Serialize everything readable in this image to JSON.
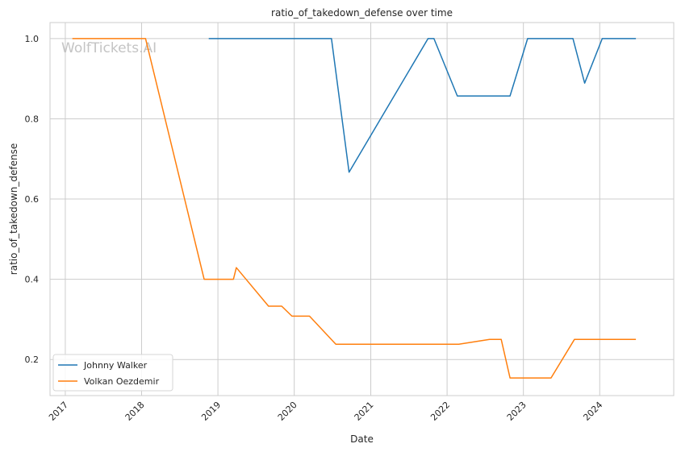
{
  "chart_data": {
    "type": "line",
    "title": "ratio_of_takedown_defense over time",
    "xlabel": "Date",
    "ylabel": "ratio_of_takedown_defense",
    "watermark": "WolfTickets.AI",
    "xlim": [
      "2016-10-20",
      "2024-12-20"
    ],
    "ylim": [
      0.11,
      1.04
    ],
    "x_ticks": [
      "2017",
      "2018",
      "2019",
      "2020",
      "2021",
      "2022",
      "2023",
      "2024"
    ],
    "y_ticks": [
      0.2,
      0.4,
      0.6,
      0.8,
      1.0
    ],
    "y_tick_labels": [
      "0.2",
      "0.4",
      "0.6",
      "0.8",
      "1.0"
    ],
    "grid": true,
    "legend_position": "lower-left",
    "series": [
      {
        "name": "Johnny Walker",
        "color": "#1f77b4",
        "points": [
          [
            "2018-11-18",
            1.0
          ],
          [
            "2020-06-27",
            1.0
          ],
          [
            "2020-09-19",
            0.667
          ],
          [
            "2021-10-02",
            1.0
          ],
          [
            "2021-10-30",
            1.0
          ],
          [
            "2022-02-19",
            0.857
          ],
          [
            "2022-10-29",
            0.857
          ],
          [
            "2023-01-21",
            1.0
          ],
          [
            "2023-08-26",
            1.0
          ],
          [
            "2023-10-21",
            0.889
          ],
          [
            "2024-01-13",
            1.0
          ],
          [
            "2024-06-22",
            1.0
          ]
        ]
      },
      {
        "name": "Volkan Oezdemir",
        "color": "#ff7f0e",
        "points": [
          [
            "2017-02-04",
            1.0
          ],
          [
            "2018-01-20",
            1.0
          ],
          [
            "2018-10-27",
            0.4
          ],
          [
            "2019-03-16",
            0.4
          ],
          [
            "2019-03-30",
            0.429
          ],
          [
            "2019-08-31",
            0.333
          ],
          [
            "2019-11-02",
            0.333
          ],
          [
            "2019-12-21",
            0.308
          ],
          [
            "2020-03-14",
            0.308
          ],
          [
            "2020-07-18",
            0.238
          ],
          [
            "2022-02-26",
            0.238
          ],
          [
            "2022-07-23",
            0.25
          ],
          [
            "2022-09-17",
            0.25
          ],
          [
            "2022-10-29",
            0.154
          ],
          [
            "2023-05-13",
            0.154
          ],
          [
            "2023-09-02",
            0.25
          ],
          [
            "2024-06-22",
            0.25
          ]
        ]
      }
    ]
  }
}
